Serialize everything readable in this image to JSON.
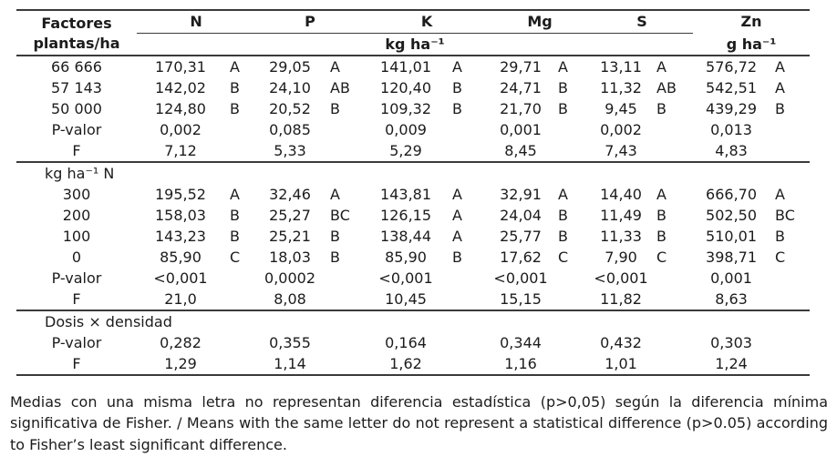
{
  "table": {
    "header": {
      "factor_title": "Factores",
      "factor_subtitle": "plantas/ha",
      "columns": [
        "N",
        "P",
        "K",
        "Mg",
        "S",
        "Zn"
      ],
      "macro_unit": "kg ha⁻¹",
      "zn_unit": "g ha⁻¹"
    },
    "sections": [
      {
        "label": "",
        "rows": [
          {
            "factor": "66 666",
            "values": [
              "170,31",
              "29,05",
              "141,01",
              "29,71",
              "13,11",
              "576,72"
            ],
            "letters": [
              "A",
              "A",
              "A",
              "A",
              "A",
              "A"
            ]
          },
          {
            "factor": "57 143",
            "values": [
              "142,02",
              "24,10",
              "120,40",
              "24,71",
              "11,32",
              "542,51"
            ],
            "letters": [
              "B",
              "AB",
              "B",
              "B",
              "AB",
              "A"
            ]
          },
          {
            "factor": "50 000",
            "values": [
              "124,80",
              "20,52",
              "109,32",
              "21,70",
              "9,45",
              "439,29"
            ],
            "letters": [
              "B",
              "B",
              "B",
              "B",
              "B",
              "B"
            ]
          },
          {
            "factor": "P-valor",
            "values": [
              "0,002",
              "0,085",
              "0,009",
              "0,001",
              "0,002",
              "0,013"
            ],
            "letters": [
              "",
              "",
              "",
              "",
              "",
              ""
            ]
          },
          {
            "factor": "F",
            "values": [
              "7,12",
              "5,33",
              "5,29",
              "8,45",
              "7,43",
              "4,83"
            ],
            "letters": [
              "",
              "",
              "",
              "",
              "",
              ""
            ]
          }
        ]
      },
      {
        "label": "kg ha⁻¹ N",
        "rows": [
          {
            "factor": "300",
            "values": [
              "195,52",
              "32,46",
              "143,81",
              "32,91",
              "14,40",
              "666,70"
            ],
            "letters": [
              "A",
              "A",
              "A",
              "A",
              "A",
              "A"
            ]
          },
          {
            "factor": "200",
            "values": [
              "158,03",
              "25,27",
              "126,15",
              "24,04",
              "11,49",
              "502,50"
            ],
            "letters": [
              "B",
              "BC",
              "A",
              "B",
              "B",
              "BC"
            ]
          },
          {
            "factor": "100",
            "values": [
              "143,23",
              "25,21",
              "138,44",
              "25,77",
              "11,33",
              "510,01"
            ],
            "letters": [
              "B",
              "B",
              "A",
              "B",
              "B",
              "B"
            ]
          },
          {
            "factor": "0",
            "values": [
              "85,90",
              "18,03",
              "85,90",
              "17,62",
              "7,90",
              "398,71"
            ],
            "letters": [
              "C",
              "B",
              "B",
              "C",
              "C",
              "C"
            ]
          },
          {
            "factor": "P-valor",
            "values": [
              "<0,001",
              "0,0002",
              "<0,001",
              "<0,001",
              "<0,001",
              "0,001"
            ],
            "letters": [
              "",
              "",
              "",
              "",
              "",
              ""
            ]
          },
          {
            "factor": "F",
            "values": [
              "21,0",
              "8,08",
              "10,45",
              "15,15",
              "11,82",
              "8,63"
            ],
            "letters": [
              "",
              "",
              "",
              "",
              "",
              ""
            ]
          }
        ]
      },
      {
        "label": "Dosis × densidad",
        "rows": [
          {
            "factor": "P-valor",
            "values": [
              "0,282",
              "0,355",
              "0,164",
              "0,344",
              "0,432",
              "0,303"
            ],
            "letters": [
              "",
              "",
              "",
              "",
              "",
              ""
            ]
          },
          {
            "factor": "F",
            "values": [
              "1,29",
              "1,14",
              "1,62",
              "1,16",
              "1,01",
              "1,24"
            ],
            "letters": [
              "",
              "",
              "",
              "",
              "",
              ""
            ]
          }
        ]
      }
    ]
  },
  "footnote": "Medias con una misma letra no representan diferencia estadística (p>0,05) según la diferencia mínima significativa de Fisher. / Means with the same letter do not represent a statistical difference (p>0.05) according to Fisher’s least significant difference.",
  "colors": {
    "text": "#1c1c1c",
    "rule": "#3a3a3a",
    "background": "#ffffff"
  }
}
